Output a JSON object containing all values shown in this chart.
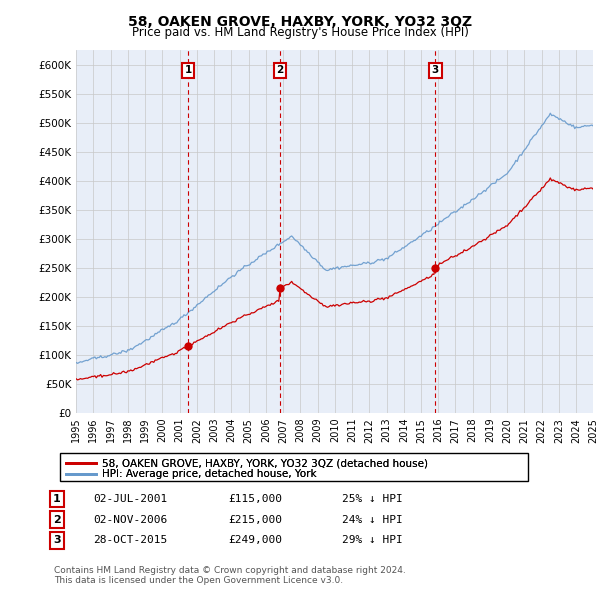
{
  "title": "58, OAKEN GROVE, HAXBY, YORK, YO32 3QZ",
  "subtitle": "Price paid vs. HM Land Registry's House Price Index (HPI)",
  "ylabel_ticks": [
    "£0",
    "£50K",
    "£100K",
    "£150K",
    "£200K",
    "£250K",
    "£300K",
    "£350K",
    "£400K",
    "£450K",
    "£500K",
    "£550K",
    "£600K"
  ],
  "ytick_values": [
    0,
    50000,
    100000,
    150000,
    200000,
    250000,
    300000,
    350000,
    400000,
    450000,
    500000,
    550000,
    600000
  ],
  "ylim": [
    0,
    625000
  ],
  "background_color": "#ffffff",
  "grid_color": "#c8c8c8",
  "plot_bg": "#e8eef8",
  "sale_color": "#cc0000",
  "hpi_color": "#6699cc",
  "vline_color": "#cc0000",
  "number_box_color": "#cc0000",
  "transactions": [
    {
      "date_num": 2001.5,
      "price": 115000,
      "label": "1"
    },
    {
      "date_num": 2006.83,
      "price": 215000,
      "label": "2"
    },
    {
      "date_num": 2015.83,
      "price": 249000,
      "label": "3"
    }
  ],
  "legend_entries": [
    "58, OAKEN GROVE, HAXBY, YORK, YO32 3QZ (detached house)",
    "HPI: Average price, detached house, York"
  ],
  "table_rows": [
    [
      "1",
      "02-JUL-2001",
      "£115,000",
      "25% ↓ HPI"
    ],
    [
      "2",
      "02-NOV-2006",
      "£215,000",
      "24% ↓ HPI"
    ],
    [
      "3",
      "28-OCT-2015",
      "£249,000",
      "29% ↓ HPI"
    ]
  ],
  "footer": "Contains HM Land Registry data © Crown copyright and database right 2024.\nThis data is licensed under the Open Government Licence v3.0.",
  "xmin": 1995,
  "xmax": 2025
}
